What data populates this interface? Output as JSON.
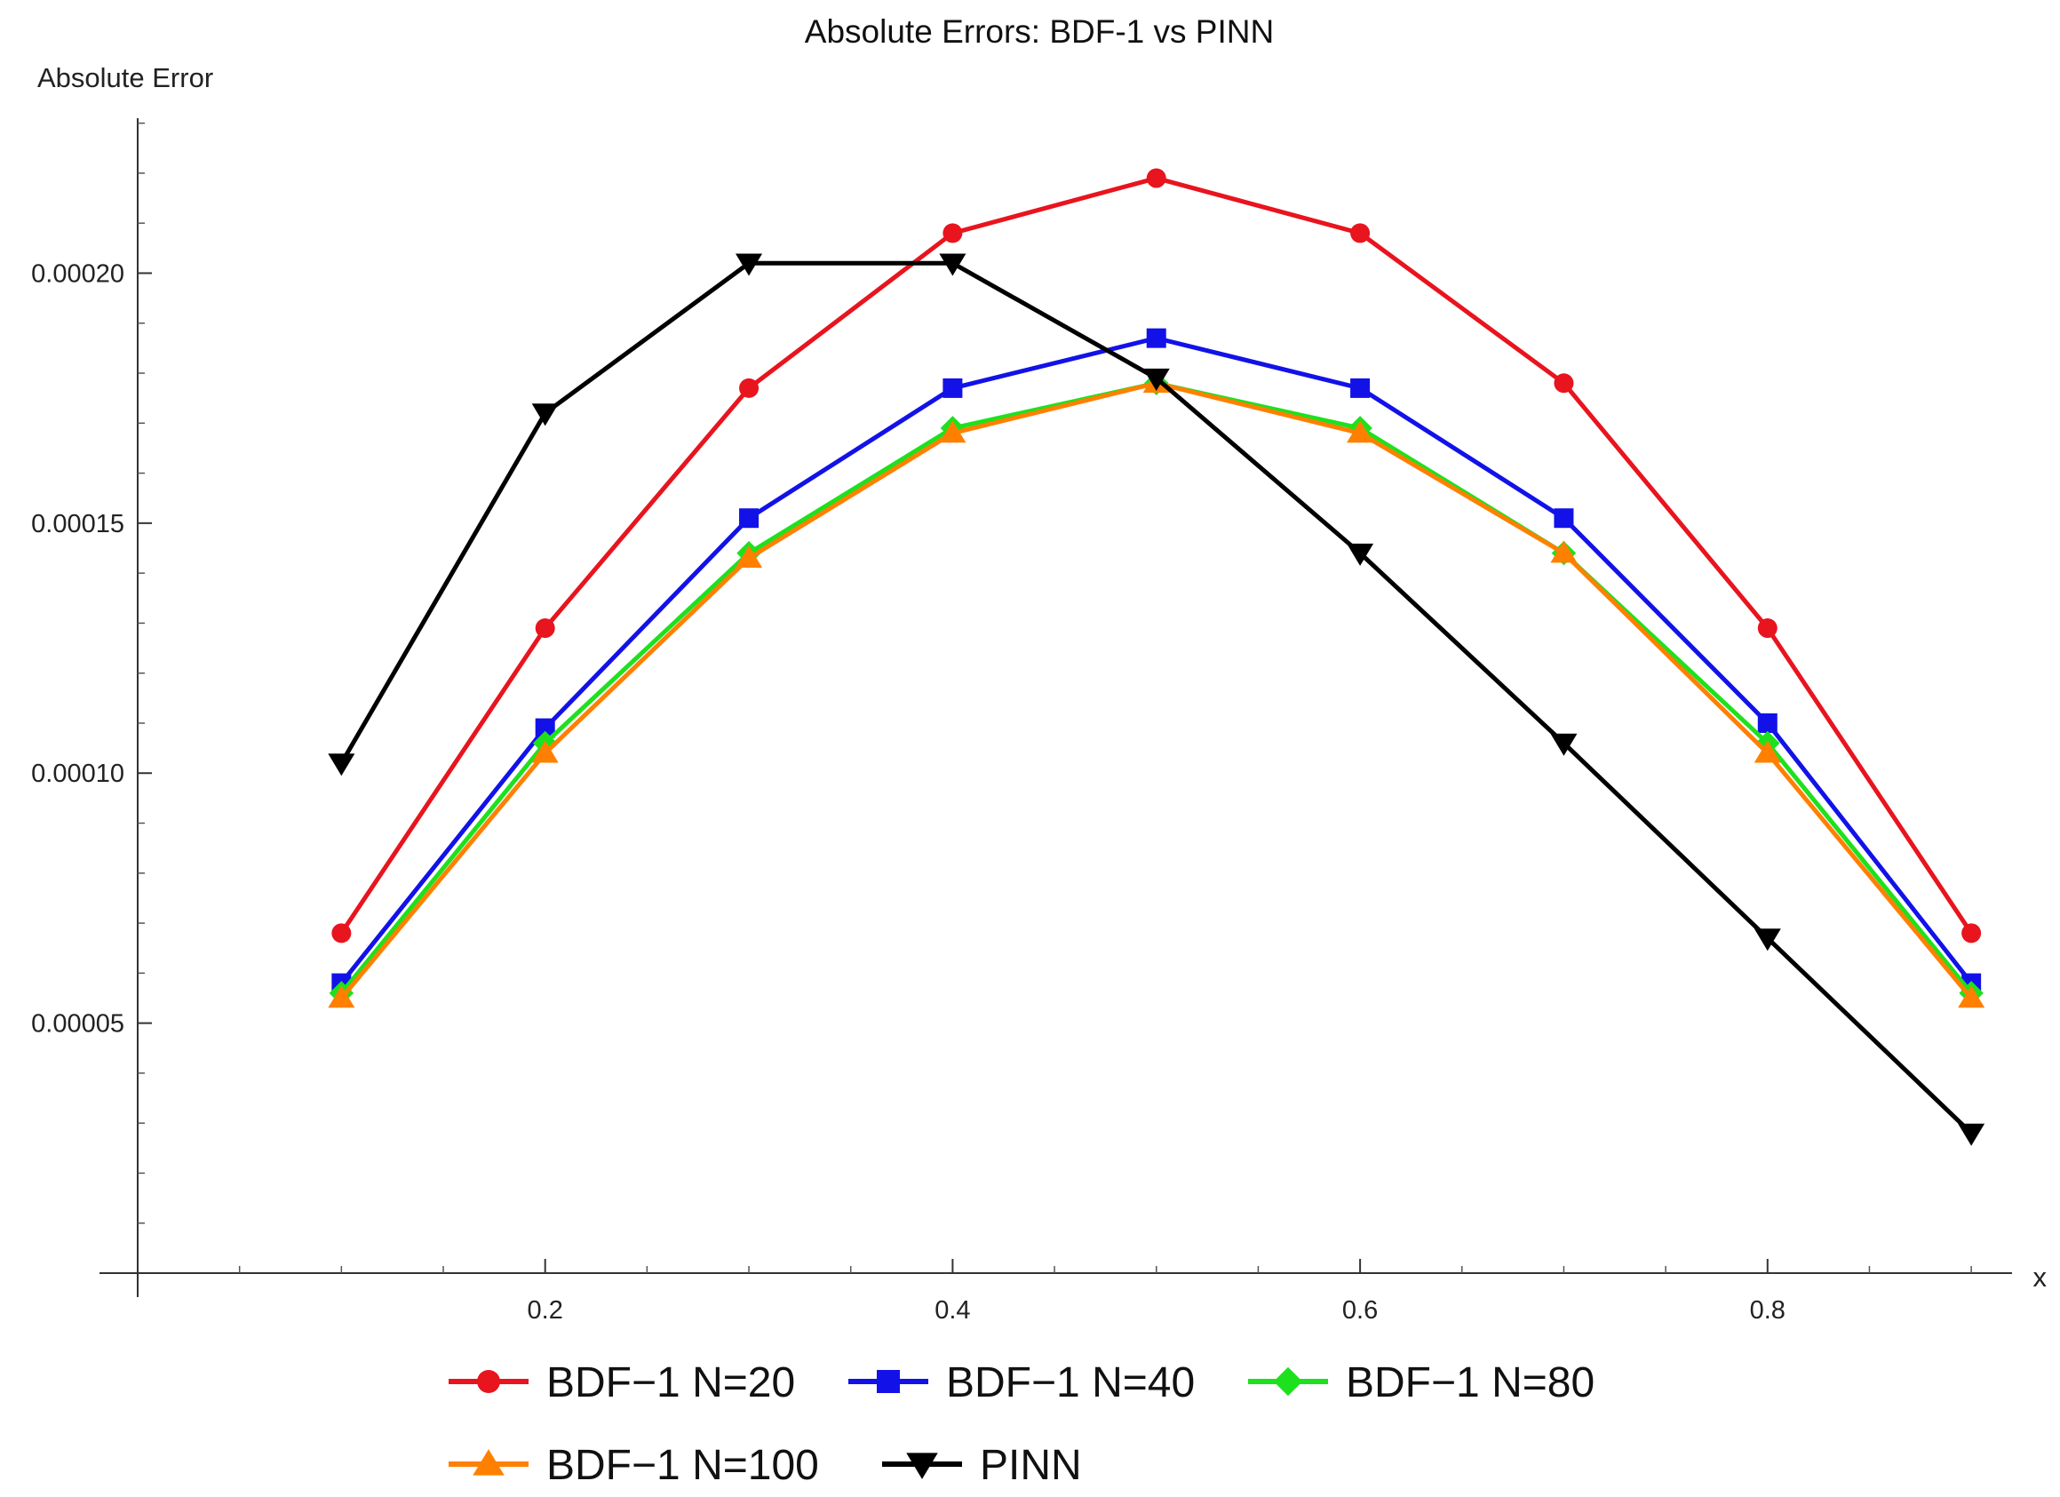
{
  "chart_data": {
    "type": "line",
    "title": "Absolute Errors: BDF-1 vs PINN",
    "xlabel": "x",
    "ylabel": "Absolute Error",
    "xlim": [
      0.0,
      0.92
    ],
    "ylim": [
      0.0,
      0.000231
    ],
    "x_ticks": [
      0.2,
      0.4,
      0.6,
      0.8
    ],
    "x_tick_labels": [
      "0.2",
      "0.4",
      "0.6",
      "0.8"
    ],
    "y_ticks": [
      5e-05,
      0.0001,
      0.00015,
      0.0002
    ],
    "y_tick_labels": [
      "0.00005",
      "0.00010",
      "0.00015",
      "0.00020"
    ],
    "grid": false,
    "legend_position": "bottom",
    "x": [
      0.1,
      0.2,
      0.3,
      0.4,
      0.5,
      0.6,
      0.7,
      0.8,
      0.9
    ],
    "series": [
      {
        "name": "BDF−1 N=20",
        "color": "#e8141e",
        "marker": "circle",
        "values": [
          6.8e-05,
          0.000129,
          0.000177,
          0.000208,
          0.000219,
          0.000208,
          0.000178,
          0.000129,
          6.8e-05
        ]
      },
      {
        "name": "BDF−1 N=40",
        "color": "#1212e8",
        "marker": "square",
        "values": [
          5.8e-05,
          0.000109,
          0.000151,
          0.000177,
          0.000187,
          0.000177,
          0.000151,
          0.00011,
          5.8e-05
        ]
      },
      {
        "name": "BDF−1 N=80",
        "color": "#1ee11e",
        "marker": "diamond",
        "values": [
          5.6e-05,
          0.000106,
          0.000144,
          0.000169,
          0.000178,
          0.000169,
          0.000144,
          0.000106,
          5.6e-05
        ]
      },
      {
        "name": "BDF−1 N=100",
        "color": "#ff8000",
        "marker": "triangle-up",
        "values": [
          5.5e-05,
          0.000104,
          0.000143,
          0.000168,
          0.000178,
          0.000168,
          0.000144,
          0.000104,
          5.5e-05
        ]
      },
      {
        "name": "PINN",
        "color": "#000000",
        "marker": "triangle-down",
        "values": [
          0.000102,
          0.000172,
          0.000202,
          0.000202,
          0.000179,
          0.000144,
          0.000106,
          6.7e-05,
          2.8e-05
        ]
      }
    ]
  }
}
